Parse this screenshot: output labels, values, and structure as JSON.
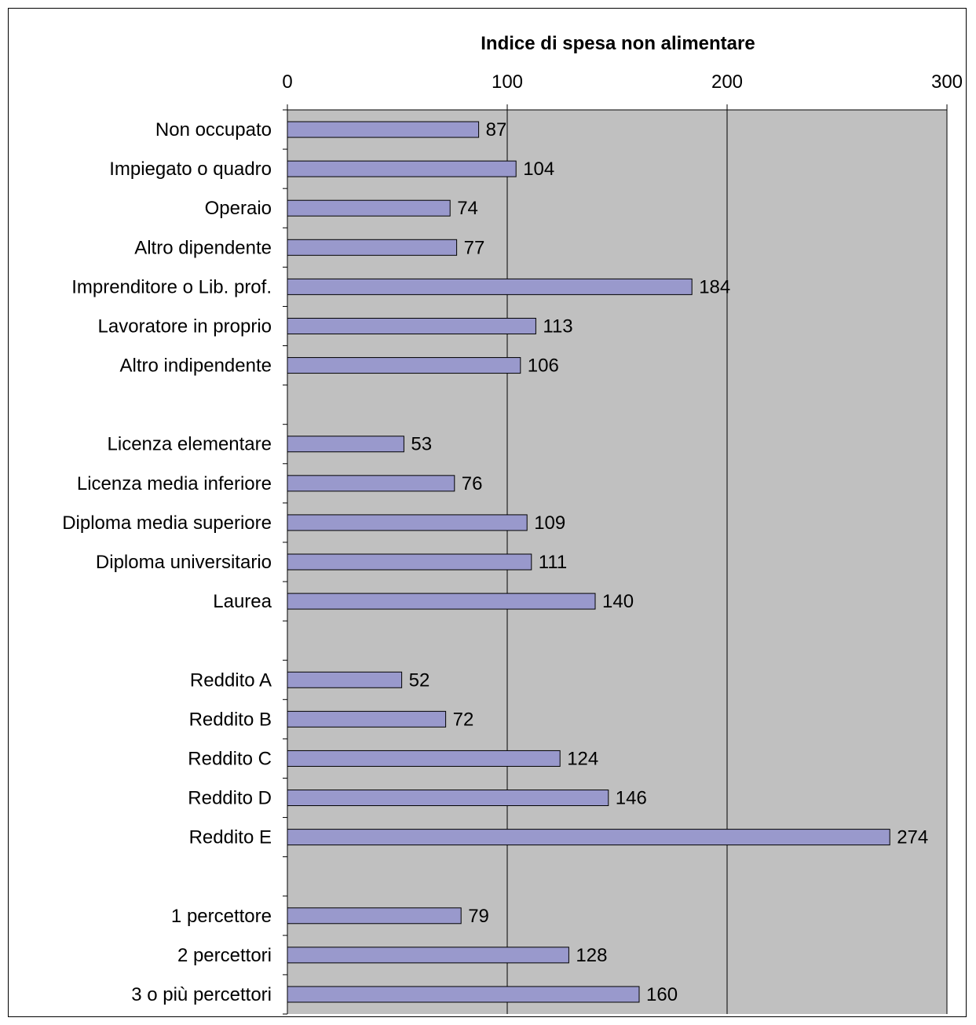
{
  "chart_data": {
    "type": "bar",
    "orientation": "horizontal",
    "title": "Indice di spesa non alimentare",
    "xlim": [
      0,
      300
    ],
    "xticks": [
      0,
      100,
      200,
      300
    ],
    "x_axis_position": "top",
    "grid": "vertical",
    "legend": "none",
    "categories": [
      "Non occupato",
      "Impiegato o quadro",
      "Operaio",
      "Altro dipendente",
      "Imprenditore o Lib. prof.",
      "Lavoratore in proprio",
      "Altro indipendente",
      "",
      "Licenza elementare",
      "Licenza media inferiore",
      "Diploma media superiore",
      "Diploma universitario",
      "Laurea",
      "",
      "Reddito A",
      "Reddito B",
      "Reddito C",
      "Reddito D",
      "Reddito E",
      "",
      "1 percettore",
      "2 percettori",
      "3 o più  percettori"
    ],
    "values": [
      87,
      104,
      74,
      77,
      184,
      113,
      106,
      null,
      53,
      76,
      109,
      111,
      140,
      null,
      52,
      72,
      124,
      146,
      274,
      null,
      79,
      128,
      160
    ],
    "colors": {
      "bar": "#9999cc",
      "plot_background": "#c0c0c0",
      "gridline": "#000000"
    }
  }
}
